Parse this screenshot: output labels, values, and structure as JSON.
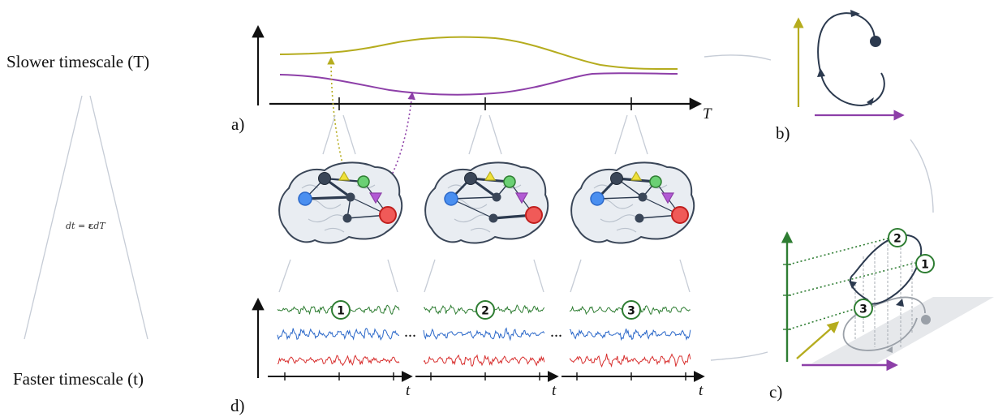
{
  "timescales": {
    "slow": "Slower timescale (T)",
    "fast": "Faster timescale (t)",
    "relation_lhs": "dt = ",
    "relation_eps": "ε",
    "relation_rhs": "dT"
  },
  "panels": {
    "a": "a)",
    "b": "b)",
    "c": "c)",
    "d": "d)"
  },
  "axes": {
    "slow_var": "T",
    "fast_var": "t"
  },
  "ellipsis": "...",
  "markers": [
    "1",
    "2",
    "3"
  ],
  "colors": {
    "yellow": "#b5ac1e",
    "purple": "#8d3fa8",
    "green": "#2e7d32",
    "blue": "#2b68c9",
    "red": "#d8302f",
    "node_dark": "#3a4658",
    "guide": "#c6ccd6"
  }
}
